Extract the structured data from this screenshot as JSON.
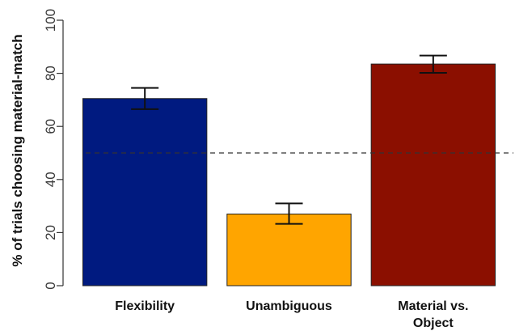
{
  "chart_data": {
    "type": "bar",
    "title": "",
    "xlabel": "",
    "ylabel": "% of trials choosing material-match",
    "ylim": [
      0,
      100
    ],
    "yticks": [
      0,
      20,
      40,
      60,
      80,
      100
    ],
    "grid": false,
    "categories": [
      "Flexibility",
      "Unambiguous",
      "Material vs.\nObject"
    ],
    "values": [
      70.5,
      27,
      83.5
    ],
    "error_low": [
      66.5,
      23.3,
      80.2
    ],
    "error_high": [
      74.5,
      31.0,
      86.7
    ],
    "bar_colors": [
      "#001a80",
      "#ffa500",
      "#8b0f00"
    ],
    "reference_line": {
      "y": 50,
      "style": "dashed",
      "color": "#333333"
    }
  }
}
